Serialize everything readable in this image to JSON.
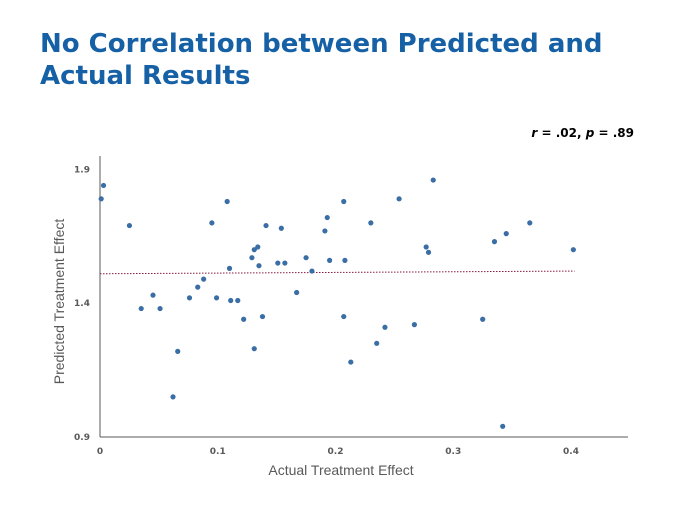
{
  "slide": {
    "title_line1": "No Correlation between Predicted and",
    "title_line2": "Actual Results"
  },
  "stats": {
    "r_label": "r",
    "r_value": " = .02, ",
    "p_label": "p",
    "p_value": " = .89"
  },
  "colors": {
    "title": "#1660a6",
    "point": "#3a6ea5",
    "trend": "#8b1a3c",
    "axis": "#595959"
  },
  "chart_data": {
    "type": "scatter",
    "title": "",
    "xlabel": "Actual Treatment Effect",
    "ylabel": "Predicted Treatment Effect",
    "xlim": [
      0,
      0.45
    ],
    "ylim": [
      0.9,
      1.95
    ],
    "x_ticks": [
      0,
      0.1,
      0.2,
      0.3,
      0.4
    ],
    "x_tick_labels": [
      "0",
      "0.1",
      "0.2",
      "0.3",
      "0.4"
    ],
    "y_ticks": [
      0.9,
      1.4,
      1.9
    ],
    "y_tick_labels": [
      "0.9",
      "1.4",
      "1.9"
    ],
    "trendline": {
      "x": [
        0,
        0.403
      ],
      "y": [
        1.51,
        1.52
      ]
    },
    "points": [
      [
        0.001,
        1.79
      ],
      [
        0.003,
        1.84
      ],
      [
        0.025,
        1.69
      ],
      [
        0.035,
        1.38
      ],
      [
        0.045,
        1.43
      ],
      [
        0.051,
        1.38
      ],
      [
        0.062,
        1.05
      ],
      [
        0.066,
        1.22
      ],
      [
        0.076,
        1.42
      ],
      [
        0.083,
        1.46
      ],
      [
        0.088,
        1.49
      ],
      [
        0.095,
        1.7
      ],
      [
        0.099,
        1.42
      ],
      [
        0.108,
        1.78
      ],
      [
        0.11,
        1.53
      ],
      [
        0.111,
        1.41
      ],
      [
        0.117,
        1.41
      ],
      [
        0.122,
        1.34
      ],
      [
        0.129,
        1.57
      ],
      [
        0.131,
        1.23
      ],
      [
        0.131,
        1.6
      ],
      [
        0.134,
        1.61
      ],
      [
        0.135,
        1.54
      ],
      [
        0.138,
        1.35
      ],
      [
        0.141,
        1.69
      ],
      [
        0.151,
        1.55
      ],
      [
        0.154,
        1.68
      ],
      [
        0.157,
        1.55
      ],
      [
        0.167,
        1.44
      ],
      [
        0.175,
        1.57
      ],
      [
        0.18,
        1.52
      ],
      [
        0.191,
        1.67
      ],
      [
        0.193,
        1.72
      ],
      [
        0.195,
        1.56
      ],
      [
        0.207,
        1.35
      ],
      [
        0.207,
        1.78
      ],
      [
        0.208,
        1.56
      ],
      [
        0.213,
        1.18
      ],
      [
        0.23,
        1.7
      ],
      [
        0.235,
        1.25
      ],
      [
        0.242,
        1.31
      ],
      [
        0.254,
        1.79
      ],
      [
        0.267,
        1.32
      ],
      [
        0.277,
        1.61
      ],
      [
        0.279,
        1.59
      ],
      [
        0.283,
        1.86
      ],
      [
        0.325,
        1.34
      ],
      [
        0.335,
        1.63
      ],
      [
        0.342,
        0.94
      ],
      [
        0.345,
        1.66
      ],
      [
        0.365,
        1.7
      ],
      [
        0.402,
        1.6
      ]
    ]
  }
}
